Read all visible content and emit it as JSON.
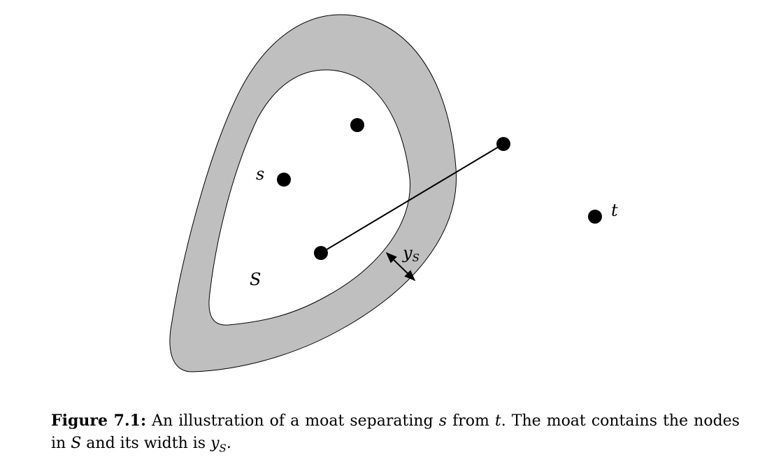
{
  "diagram": {
    "colors": {
      "moat": "#bfbfbf",
      "ink": "#000000",
      "background": "#ffffff"
    },
    "labels": {
      "s": "s",
      "t": "t",
      "S": "S",
      "width_base": "y",
      "width_sub": "S"
    }
  },
  "caption": {
    "figure_label": "Figure 7.1:",
    "text_1": "An illustration of a moat separating",
    "var_s": "s",
    "text_2": "from",
    "var_t": "t",
    "text_3": ". The moat contains the nodes in",
    "var_S": "S",
    "text_4": "and its width is",
    "var_y": "y",
    "var_y_sub": "S",
    "text_5": "."
  }
}
